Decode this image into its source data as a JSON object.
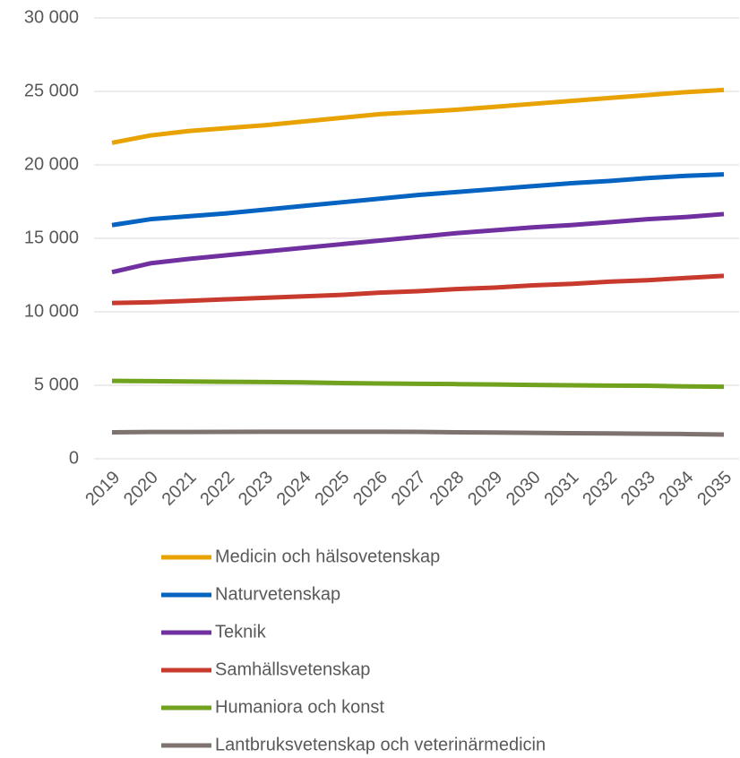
{
  "chart_data": {
    "type": "line",
    "categories": [
      "2019",
      "2020",
      "2021",
      "2022",
      "2023",
      "2024",
      "2025",
      "2026",
      "2027",
      "2028",
      "2029",
      "2030",
      "2031",
      "2032",
      "2033",
      "2034",
      "2035"
    ],
    "series": [
      {
        "name": "Medicin och hälsovetenskap",
        "color": "#e8a202",
        "values": [
          21500,
          22000,
          22300,
          22500,
          22700,
          22950,
          23200,
          23450,
          23600,
          23750,
          23950,
          24150,
          24350,
          24550,
          24750,
          24950,
          25100
        ]
      },
      {
        "name": "Naturvetenskap",
        "color": "#0563c1",
        "values": [
          15900,
          16300,
          16500,
          16700,
          16950,
          17200,
          17450,
          17700,
          17950,
          18150,
          18350,
          18550,
          18750,
          18900,
          19100,
          19250,
          19350
        ]
      },
      {
        "name": "Teknik",
        "color": "#7030a0",
        "values": [
          12700,
          13300,
          13600,
          13850,
          14100,
          14350,
          14600,
          14850,
          15100,
          15350,
          15550,
          15750,
          15900,
          16100,
          16300,
          16450,
          16650
        ]
      },
      {
        "name": "Samhällsvetenskap",
        "color": "#c83a2e",
        "values": [
          10600,
          10650,
          10750,
          10850,
          10950,
          11050,
          11150,
          11300,
          11400,
          11550,
          11650,
          11800,
          11900,
          12050,
          12150,
          12300,
          12450
        ]
      },
      {
        "name": "Humaniora och konst",
        "color": "#70a21e",
        "values": [
          5300,
          5280,
          5260,
          5240,
          5220,
          5200,
          5150,
          5120,
          5100,
          5080,
          5050,
          5020,
          5000,
          4980,
          4970,
          4920,
          4900
        ]
      },
      {
        "name": "Lantbruksvetenskap och veterinärmedicin",
        "color": "#7f7370",
        "values": [
          1800,
          1820,
          1820,
          1830,
          1840,
          1840,
          1840,
          1840,
          1830,
          1800,
          1780,
          1760,
          1740,
          1720,
          1700,
          1680,
          1650
        ]
      }
    ],
    "ylim": [
      0,
      30000
    ],
    "yticks": [
      {
        "value": 0,
        "label": "0"
      },
      {
        "value": 5000,
        "label": "5 000"
      },
      {
        "value": 10000,
        "label": "10 000"
      },
      {
        "value": 15000,
        "label": "15 000"
      },
      {
        "value": 20000,
        "label": "20 000"
      },
      {
        "value": 25000,
        "label": "25 000"
      },
      {
        "value": 30000,
        "label": "30 000"
      }
    ],
    "grid": true,
    "legend": "bottom"
  }
}
